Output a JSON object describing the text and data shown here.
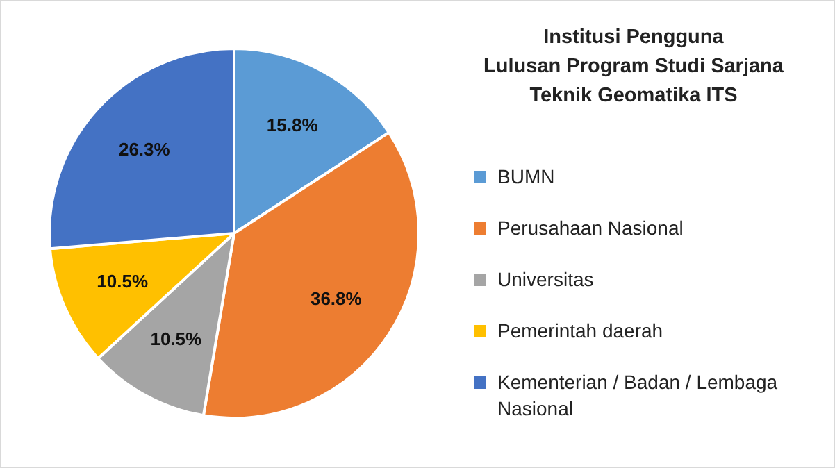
{
  "chart_data": {
    "type": "pie",
    "title": "Institusi Pengguna\nLulusan Program Studi Sarjana\nTeknik Geomatika ITS",
    "categories": [
      "BUMN",
      "Perusahaan Nasional",
      "Universitas",
      "Pemerintah daerah",
      "Kementerian / Badan / Lembaga Nasional"
    ],
    "values": [
      15.8,
      36.8,
      10.5,
      10.5,
      26.3
    ],
    "value_labels": [
      "15.8%",
      "36.8%",
      "10.5%",
      "10.5%",
      "26.3%"
    ],
    "colors": [
      "#5b9bd5",
      "#ed7d31",
      "#a5a5a5",
      "#ffc000",
      "#4472c4"
    ],
    "legend": "right"
  }
}
